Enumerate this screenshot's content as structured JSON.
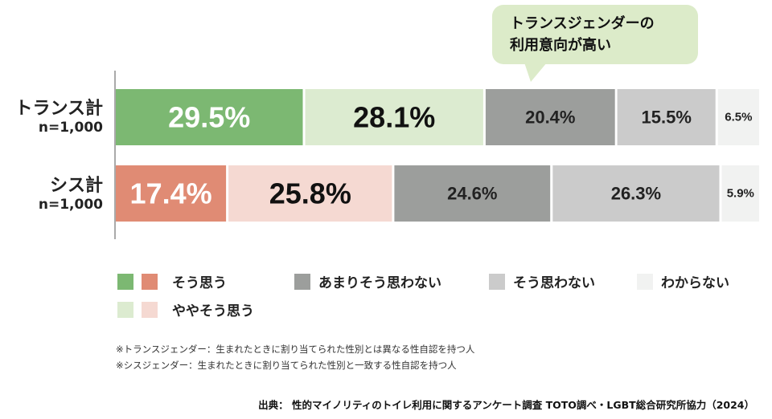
{
  "callout": {
    "text": "トランスジェンダーの\n利用意向が高い"
  },
  "rows": [
    {
      "name": "トランス計",
      "n": "n=1,000"
    },
    {
      "name": "シス計",
      "n": "n=1,000"
    }
  ],
  "legend": {
    "agree": "そう思う",
    "somewhat_agree": "ややそう思う",
    "not_really": "あまりそう思わない",
    "disagree": "そう思わない",
    "dont_know": "わからない"
  },
  "notes": [
    "※トランスジェンダー：生まれたときに割り当てられた性別とは異なる性自認を持つ人",
    "※シスジェンダー：生まれたときに割り当てられた性別と一致する性自認を持つ人"
  ],
  "source": "出典： 性的マイノリティのトイレ利用に関するアンケート調査 TOTO調べ・LGBT総合研究所協力（2024）",
  "colors": {
    "trans_agree": "#7cb872",
    "trans_somewhat": "#dcebd0",
    "cis_agree": "#e08b74",
    "cis_somewhat": "#f5d9d2",
    "not_really": "#9c9e9c",
    "disagree": "#cbcbcb",
    "dont_know": "#f1f2f1"
  },
  "chart_data": {
    "type": "bar",
    "orientation": "horizontal",
    "stacked": true,
    "categories": [
      "トランス計",
      "シス計"
    ],
    "series": [
      {
        "name": "そう思う",
        "values": [
          29.5,
          17.4
        ],
        "labels": [
          "29.5%",
          "17.4%"
        ]
      },
      {
        "name": "ややそう思う",
        "values": [
          28.1,
          25.8
        ],
        "labels": [
          "28.1%",
          "25.8%"
        ]
      },
      {
        "name": "あまりそう思わない",
        "values": [
          20.4,
          24.6
        ],
        "labels": [
          "20.4%",
          "24.6%"
        ]
      },
      {
        "name": "そう思わない",
        "values": [
          15.5,
          26.3
        ],
        "labels": [
          "15.5%",
          "26.3%"
        ]
      },
      {
        "name": "わからない",
        "values": [
          6.5,
          5.9
        ],
        "labels": [
          "6.5%",
          "5.9%"
        ]
      }
    ]
  }
}
